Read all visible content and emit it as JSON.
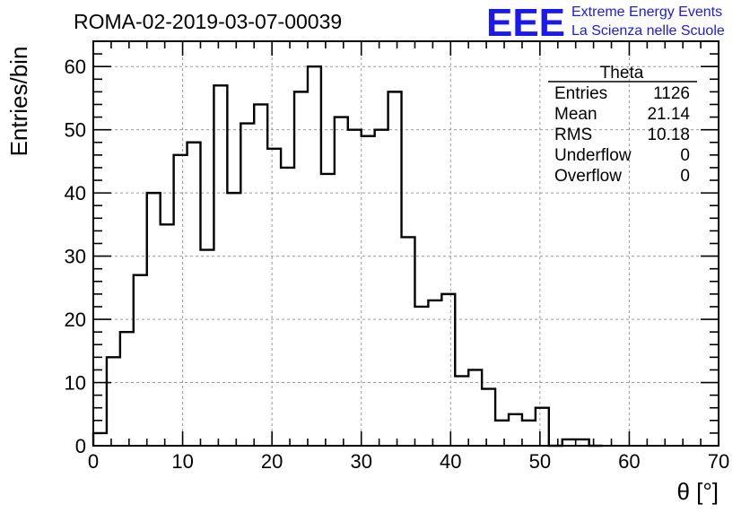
{
  "title": "ROMA-02-2019-03-07-00039",
  "logo": {
    "mark": "EEE",
    "line1": "Extreme Energy Events",
    "line2": "La Scienza nelle Scuole",
    "color": "#1a1aee"
  },
  "stats": {
    "name": "Theta",
    "rows": [
      {
        "label": "Entries",
        "value": "1126"
      },
      {
        "label": "Mean",
        "value": "21.14"
      },
      {
        "label": "RMS",
        "value": "10.18"
      },
      {
        "label": "Underflow",
        "value": "0"
      },
      {
        "label": "Overflow",
        "value": "0"
      }
    ]
  },
  "chart_data": {
    "type": "bar",
    "style": "step-histogram",
    "xlabel": "θ [°]",
    "ylabel": "Entries/bin",
    "xlim": [
      0,
      70
    ],
    "ylim": [
      0,
      64
    ],
    "bin_width": 1.5,
    "x_ticks": [
      0,
      10,
      20,
      30,
      40,
      50,
      60,
      70
    ],
    "y_ticks": [
      0,
      10,
      20,
      30,
      40,
      50,
      60
    ],
    "grid": true,
    "bin_starts": [
      0,
      1.5,
      3,
      4.5,
      6,
      7.5,
      9,
      10.5,
      12,
      13.5,
      15,
      16.5,
      18,
      19.5,
      21,
      22.5,
      24,
      25.5,
      27,
      28.5,
      30,
      31.5,
      33,
      34.5,
      36,
      37.5,
      39,
      40.5,
      42,
      43.5,
      45,
      46.5,
      48,
      49.5,
      51,
      52.5,
      54,
      55.5
    ],
    "values": [
      2,
      14,
      18,
      27,
      40,
      35,
      46,
      48,
      31,
      57,
      40,
      51,
      54,
      47,
      44,
      56,
      60,
      43,
      52,
      50,
      49,
      50,
      56,
      33,
      22,
      23,
      24,
      11,
      12,
      9,
      4,
      5,
      4,
      6,
      0,
      1,
      1,
      0
    ]
  }
}
